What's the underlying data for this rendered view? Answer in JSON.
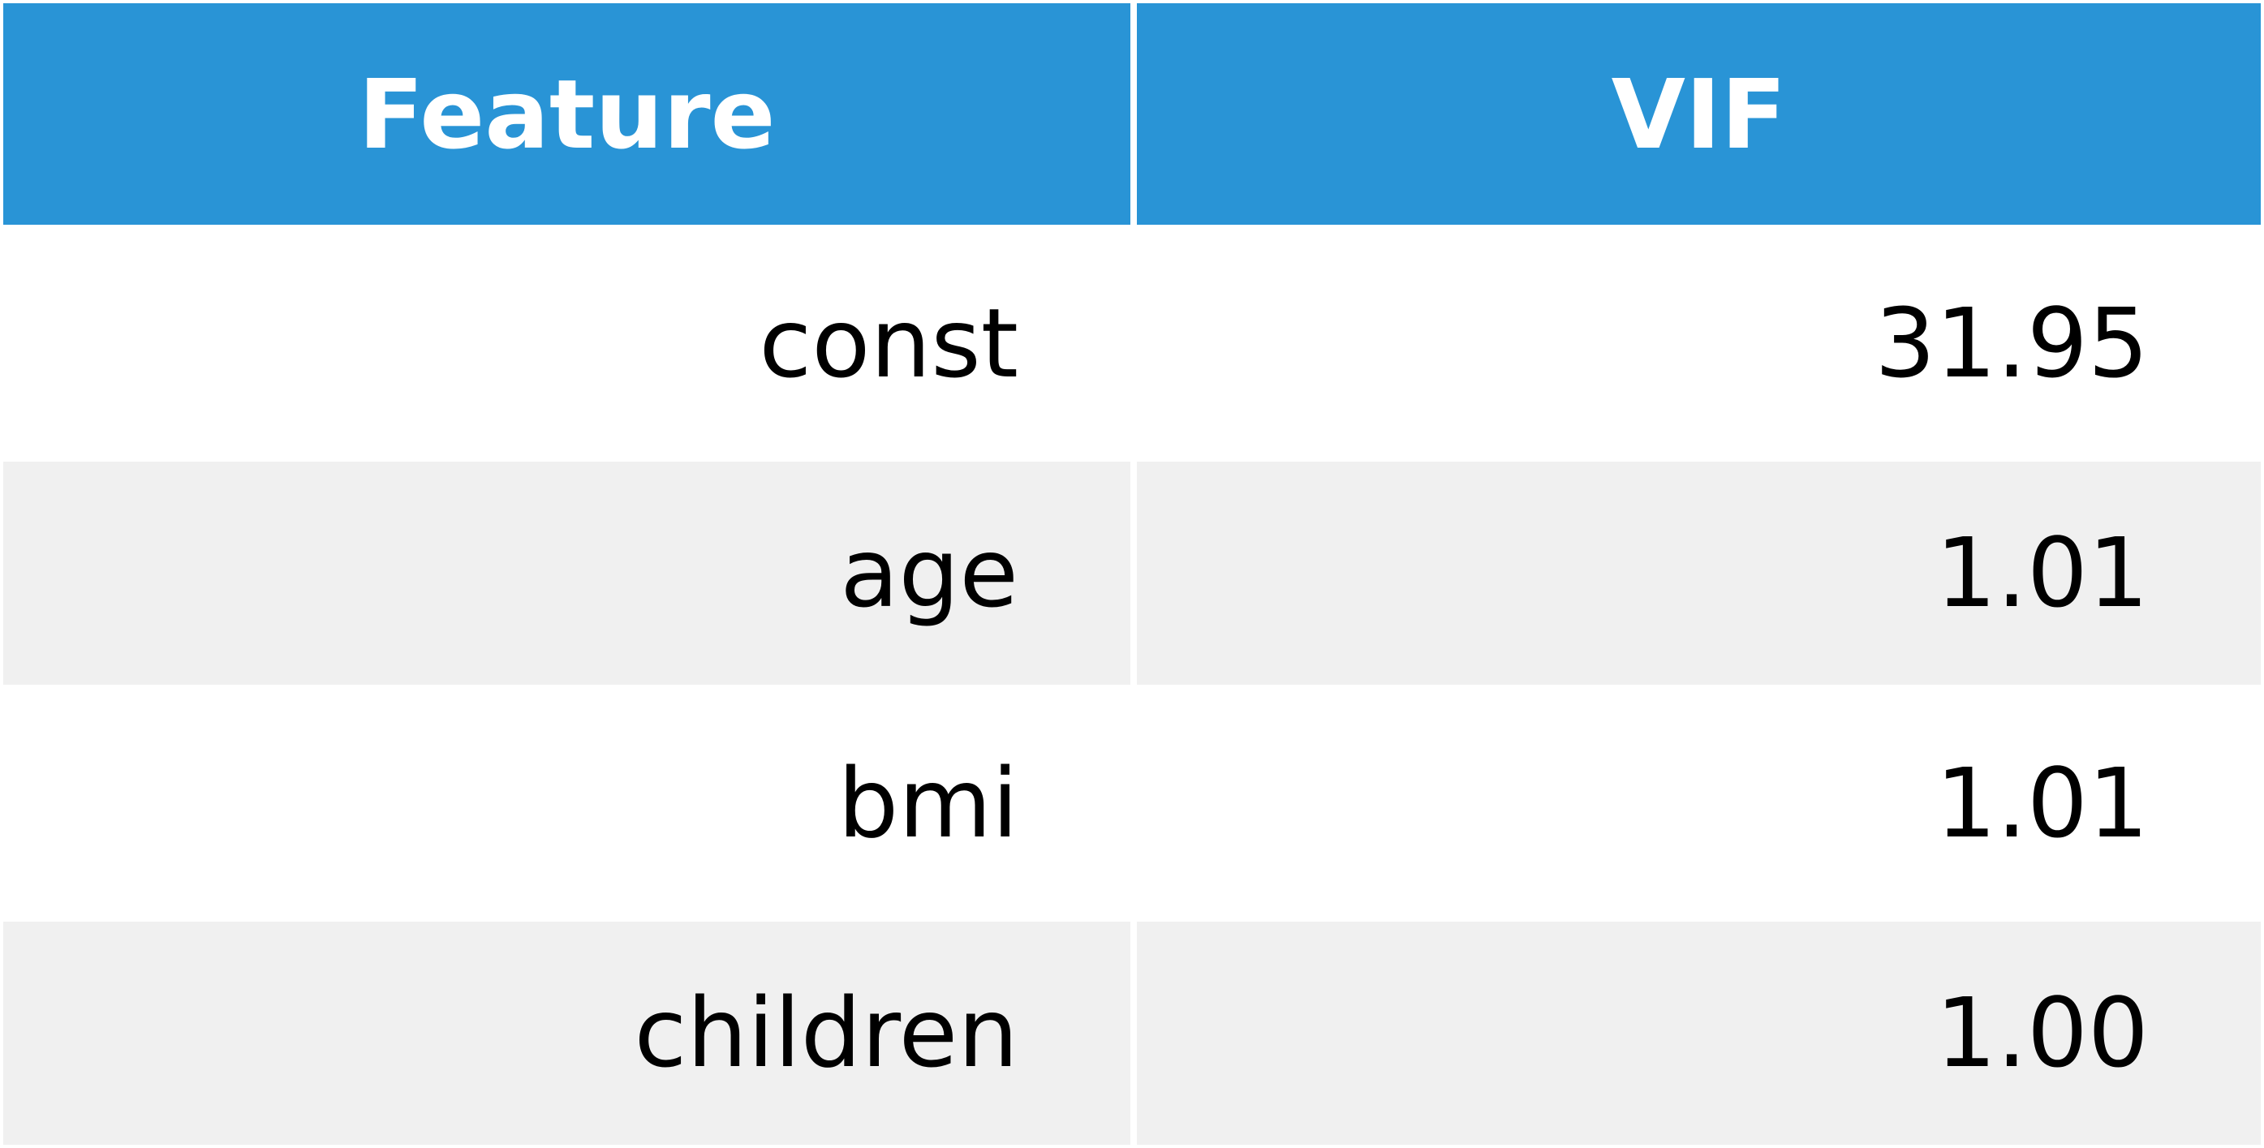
{
  "chart_data": {
    "type": "table",
    "columns": [
      "Feature",
      "VIF"
    ],
    "rows": [
      {
        "feature": "const",
        "vif": "31.95"
      },
      {
        "feature": "age",
        "vif": "1.01"
      },
      {
        "feature": "bmi",
        "vif": "1.01"
      },
      {
        "feature": "children",
        "vif": "1.00"
      }
    ],
    "values": [
      31.95,
      1.01,
      1.01,
      1.0
    ]
  },
  "colors": {
    "header_background": "#2994d6",
    "header_text": "#ffffff",
    "row_stripe": "#f0f0f0",
    "row_plain": "#ffffff"
  }
}
